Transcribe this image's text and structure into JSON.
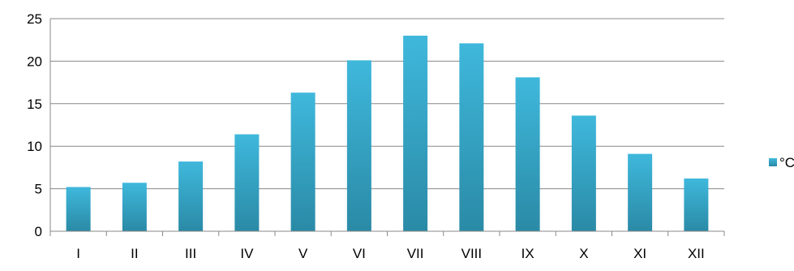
{
  "chart_data": {
    "type": "bar",
    "categories": [
      "I",
      "II",
      "III",
      "IV",
      "V",
      "VI",
      "VII",
      "VIII",
      "IX",
      "X",
      "XI",
      "XII"
    ],
    "series": [
      {
        "name": "°C",
        "values": [
          5.2,
          5.7,
          8.2,
          11.4,
          16.3,
          20.1,
          23.0,
          22.1,
          18.1,
          13.6,
          9.1,
          6.2
        ]
      }
    ],
    "title": "",
    "xlabel": "",
    "ylabel": "",
    "ylim": [
      0,
      25
    ],
    "yticks": [
      "0",
      "5",
      "10",
      "15",
      "20",
      "25"
    ],
    "grid": true,
    "legend_position": "right",
    "colors": {
      "bar_top": "#3fb8dc",
      "bar_bottom": "#2a8aa6",
      "grid": "#888888",
      "axis": "#888888"
    }
  }
}
